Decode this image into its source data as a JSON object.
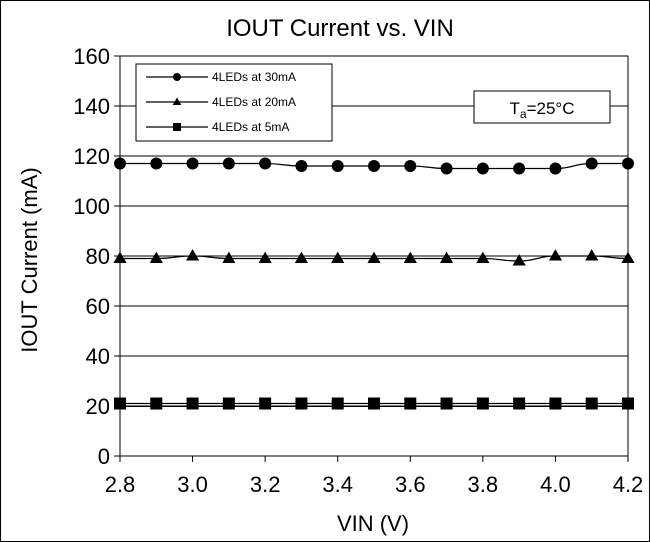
{
  "chart_data": {
    "type": "line",
    "title": "IOUT Current vs. VIN",
    "xlabel": "VIN (V)",
    "ylabel": "IOUT Current (mA)",
    "xlim": [
      2.8,
      4.2
    ],
    "ylim": [
      0,
      160
    ],
    "x_ticks": [
      "2.8",
      "3.0",
      "3.2",
      "3.4",
      "3.6",
      "3.8",
      "4.0",
      "4.2"
    ],
    "y_ticks": [
      "0",
      "20",
      "40",
      "60",
      "80",
      "100",
      "120",
      "140",
      "160"
    ],
    "grid": "horizontal",
    "legend_position": "top-left",
    "x": [
      2.8,
      2.9,
      3.0,
      3.1,
      3.2,
      3.3,
      3.4,
      3.5,
      3.6,
      3.7,
      3.8,
      3.9,
      4.0,
      4.1,
      4.2
    ],
    "series": [
      {
        "name": "4LEDs at 30mA",
        "marker": "circle",
        "values": [
          117,
          117,
          117,
          117,
          117,
          116,
          116,
          116,
          116,
          115,
          115,
          115,
          115,
          117,
          117
        ]
      },
      {
        "name": "4LEDs at 20mA",
        "marker": "triangle",
        "values": [
          79,
          79,
          80,
          79,
          79,
          79,
          79,
          79,
          79,
          79,
          79,
          78,
          80,
          80,
          79
        ]
      },
      {
        "name": "4LEDs at 5mA",
        "marker": "square",
        "values": [
          21,
          21,
          21,
          21,
          21,
          21,
          21,
          21,
          21,
          21,
          21,
          21,
          21,
          21,
          21
        ]
      }
    ],
    "annotation": {
      "T": "T",
      "sub": "a",
      "rest": "=25°C"
    }
  }
}
